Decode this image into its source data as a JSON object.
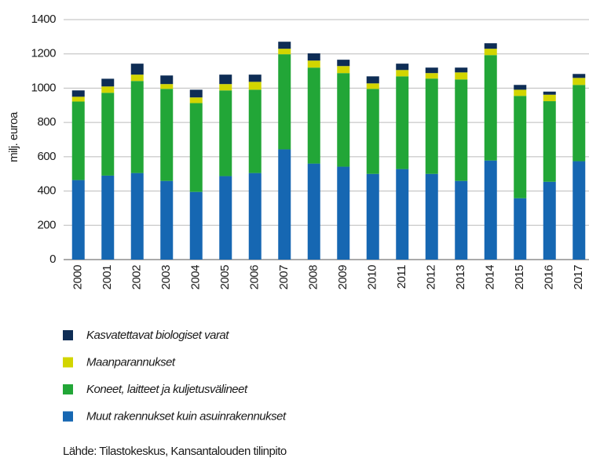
{
  "chart_data": {
    "type": "stacked_bar",
    "y_label": "milj. euroa",
    "source": "Lähde: Tilastokeskus, Kansantalouden tilinpito",
    "categories": [
      "2000",
      "2001",
      "2002",
      "2003",
      "2004",
      "2005",
      "2006",
      "2007",
      "2008",
      "2009",
      "2010",
      "2011",
      "2012",
      "2013",
      "2014",
      "2015",
      "2016",
      "2017"
    ],
    "series": [
      {
        "name": "Muut rakennukset kuin asuinrakennukset",
        "color": "#1667b2",
        "values": [
          464,
          490,
          505,
          459,
          395,
          487,
          505,
          643,
          560,
          542,
          500,
          528,
          500,
          459,
          578,
          358,
          454,
          574
        ]
      },
      {
        "name": "Koneet, laitteet ja kuljetusvälineet",
        "color": "#22a637",
        "values": [
          458,
          483,
          537,
          537,
          518,
          500,
          486,
          555,
          560,
          546,
          496,
          541,
          556,
          592,
          615,
          597,
          470,
          445
        ]
      },
      {
        "name": "Maanparannukset",
        "color": "#d2d500",
        "values": [
          28,
          37,
          37,
          28,
          33,
          37,
          46,
          32,
          41,
          41,
          32,
          37,
          32,
          41,
          37,
          36,
          38,
          41
        ]
      },
      {
        "name": "Kasvatettavat biologiset varat",
        "color": "#0e2d55",
        "values": [
          37,
          45,
          64,
          50,
          45,
          55,
          42,
          41,
          42,
          37,
          41,
          37,
          32,
          28,
          32,
          28,
          18,
          23
        ]
      }
    ],
    "ylim": [
      0,
      1400
    ],
    "yticks": [
      0,
      200,
      400,
      600,
      800,
      1000,
      1200,
      1400
    ],
    "grid": true
  }
}
